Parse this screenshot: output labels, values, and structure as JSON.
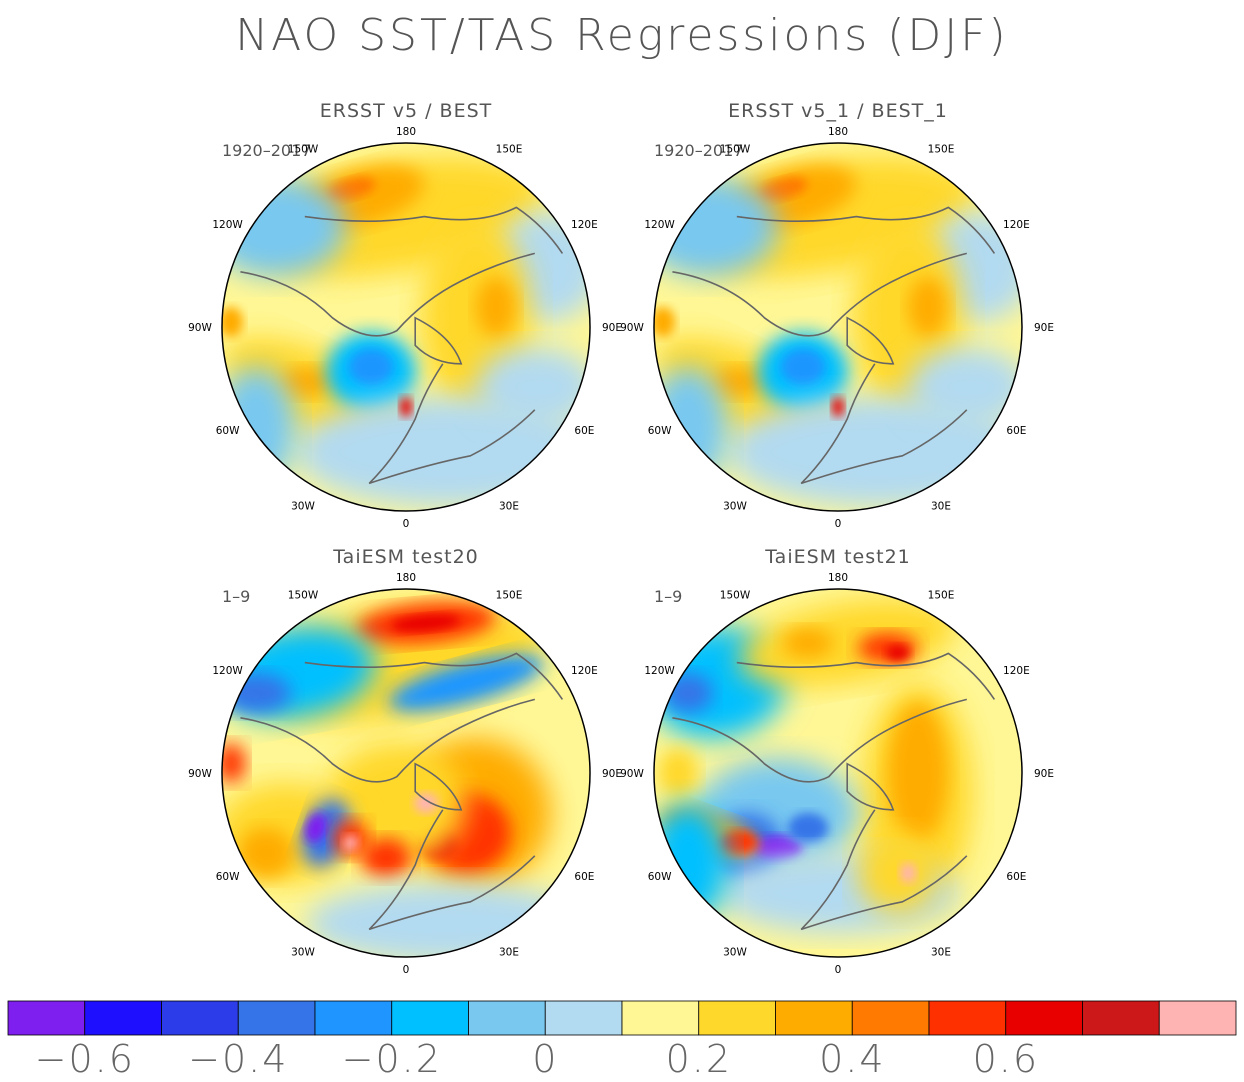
{
  "figure": {
    "title": "NAO SST/TAS Regressions (DJF)"
  },
  "panels": [
    {
      "title": "ERSST v5 / BEST",
      "period": "1920–2017",
      "style": "obs"
    },
    {
      "title": "ERSST v5_1 / BEST_1",
      "period": "1920–2017",
      "style": "obs"
    },
    {
      "title": "TaiESM test20",
      "period": "1–9",
      "style": "model20"
    },
    {
      "title": "TaiESM test21",
      "period": "1–9",
      "style": "model21"
    }
  ],
  "longitude_labels": [
    "180",
    "150E",
    "120E",
    "90E",
    "60E",
    "30E",
    "0",
    "30W",
    "60W",
    "90W",
    "120W",
    "150W"
  ],
  "colorbar": {
    "colors": [
      "#7f1fef",
      "#1e0fff",
      "#2b3ce8",
      "#3474e8",
      "#1f96ff",
      "#00c0ff",
      "#78c8f0",
      "#b2daf0",
      "#fff796",
      "#ffd82c",
      "#ffac00",
      "#ff7a00",
      "#ff3000",
      "#e80000",
      "#cc1818",
      "#ffb4b4"
    ],
    "tick_labels": [
      "−0.6",
      "−0.4",
      "−0.2",
      "0",
      "0.2",
      "0.4",
      "0.6"
    ]
  }
}
